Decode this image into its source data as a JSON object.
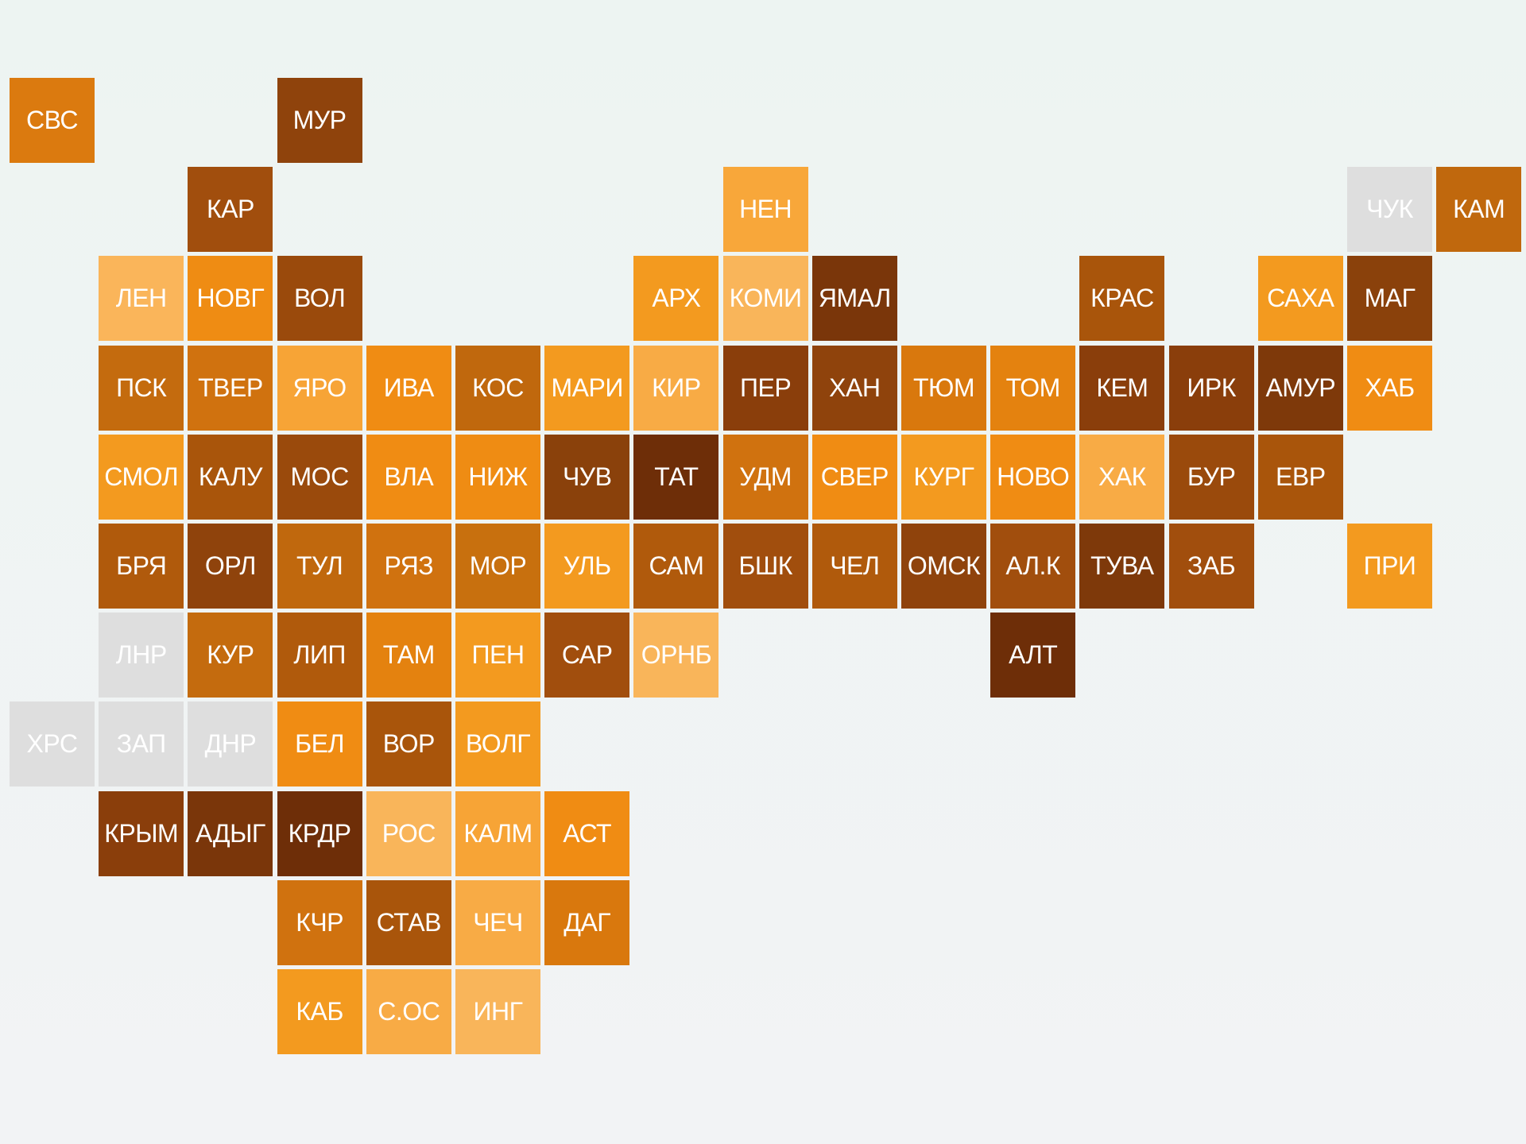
{
  "map": {
    "rows": [
      [
        {
          "label": "СВС",
          "color": "#db7a0f"
        },
        null,
        null,
        {
          "label": "МУР",
          "color": "#8f430c"
        }
      ],
      [
        null,
        null,
        {
          "label": "КАР",
          "color": "#a14e0d"
        },
        null,
        null,
        null,
        null,
        null,
        {
          "label": "НЕН",
          "color": "#f8a73a"
        },
        null,
        null,
        null,
        null,
        null,
        null,
        {
          "label": "ЧУК",
          "color": "#dedede"
        },
        {
          "label": "КАМ",
          "color": "#c0680d"
        }
      ],
      [
        null,
        {
          "label": "ЛЕН",
          "color": "#fab55a"
        },
        {
          "label": "НОВГ",
          "color": "#ef8c13"
        },
        {
          "label": "ВОЛ",
          "color": "#9a4a0c"
        },
        null,
        null,
        null,
        {
          "label": "АРХ",
          "color": "#f39a1f"
        },
        {
          "label": "КОМИ",
          "color": "#f9b55a"
        },
        {
          "label": "ЯМАЛ",
          "color": "#7a360a"
        },
        null,
        null,
        {
          "label": "КРАС",
          "color": "#a9550b"
        },
        null,
        {
          "label": "САХА",
          "color": "#f39a1f"
        },
        {
          "label": "МАГ",
          "color": "#8a410b"
        }
      ],
      [
        null,
        {
          "label": "ПСК",
          "color": "#c46b0e"
        },
        {
          "label": "ТВЕР",
          "color": "#d0720f"
        },
        {
          "label": "ЯРО",
          "color": "#f7a436"
        },
        {
          "label": "ИВА",
          "color": "#f08c13"
        },
        {
          "label": "КОС",
          "color": "#c0680d"
        },
        {
          "label": "МАРИ",
          "color": "#f39a1f"
        },
        {
          "label": "КИР",
          "color": "#f8ab45"
        },
        {
          "label": "ПЕР",
          "color": "#8a3e0b"
        },
        {
          "label": "ХАН",
          "color": "#8f430c"
        },
        {
          "label": "ТЮМ",
          "color": "#d9780d"
        },
        {
          "label": "ТОМ",
          "color": "#e4820f"
        },
        {
          "label": "КЕМ",
          "color": "#8a3e0b"
        },
        {
          "label": "ИРК",
          "color": "#8a3e0b"
        },
        {
          "label": "АМУР",
          "color": "#7e390a"
        },
        {
          "label": "ХАБ",
          "color": "#f08c13"
        }
      ],
      [
        null,
        {
          "label": "СМОЛ",
          "color": "#f39a1f"
        },
        {
          "label": "КАЛУ",
          "color": "#a9550b"
        },
        {
          "label": "МОС",
          "color": "#9a4a0c"
        },
        {
          "label": "ВЛА",
          "color": "#f08c13"
        },
        {
          "label": "НИЖ",
          "color": "#ef8c13"
        },
        {
          "label": "ЧУВ",
          "color": "#8a410b"
        },
        {
          "label": "ТАТ",
          "color": "#6e2e08"
        },
        {
          "label": "УДМ",
          "color": "#d0720f"
        },
        {
          "label": "СВЕР",
          "color": "#f08c13"
        },
        {
          "label": "КУРГ",
          "color": "#f39a1f"
        },
        {
          "label": "НОВО",
          "color": "#f08c13"
        },
        {
          "label": "ХАК",
          "color": "#f8ab45"
        },
        {
          "label": "БУР",
          "color": "#9a4a0c"
        },
        {
          "label": "ЕВР",
          "color": "#a9550b"
        }
      ],
      [
        null,
        {
          "label": "БРЯ",
          "color": "#b05a0c"
        },
        {
          "label": "ОРЛ",
          "color": "#8f430c"
        },
        {
          "label": "ТУЛ",
          "color": "#c0680d"
        },
        {
          "label": "РЯЗ",
          "color": "#d0720f"
        },
        {
          "label": "МОР",
          "color": "#c8700e"
        },
        {
          "label": "УЛЬ",
          "color": "#f39a1f"
        },
        {
          "label": "САМ",
          "color": "#b05a0c"
        },
        {
          "label": "БШК",
          "color": "#a14e0d"
        },
        {
          "label": "ЧЕЛ",
          "color": "#b05a0c"
        },
        {
          "label": "ОМСК",
          "color": "#8f430c"
        },
        {
          "label": "АЛ.К",
          "color": "#a14e0d"
        },
        {
          "label": "ТУВА",
          "color": "#7e390a"
        },
        {
          "label": "ЗАБ",
          "color": "#a14e0d"
        },
        null,
        {
          "label": "ПРИ",
          "color": "#f39a1f"
        }
      ],
      [
        null,
        {
          "label": "ЛНР",
          "color": "#dedede"
        },
        {
          "label": "КУР",
          "color": "#c46b0e"
        },
        {
          "label": "ЛИП",
          "color": "#b05a0c"
        },
        {
          "label": "ТАМ",
          "color": "#e4820f"
        },
        {
          "label": "ПЕН",
          "color": "#f39a1f"
        },
        {
          "label": "САР",
          "color": "#a14e0d"
        },
        {
          "label": "ОРНБ",
          "color": "#f9b55a"
        },
        null,
        null,
        null,
        {
          "label": "АЛТ",
          "color": "#6e2e08"
        }
      ],
      [
        {
          "label": "ХРС",
          "color": "#dedede"
        },
        {
          "label": "ЗАП",
          "color": "#dedede"
        },
        {
          "label": "ДНР",
          "color": "#dedede"
        },
        {
          "label": "БЕЛ",
          "color": "#f08c13"
        },
        {
          "label": "ВОР",
          "color": "#a9550b"
        },
        {
          "label": "ВОЛГ",
          "color": "#f39a1f"
        }
      ],
      [
        null,
        {
          "label": "КРЫМ",
          "color": "#8a3e0b"
        },
        {
          "label": "АДЫГ",
          "color": "#7a360a"
        },
        {
          "label": "КРДР",
          "color": "#6e2e08"
        },
        {
          "label": "РОС",
          "color": "#f9b55a"
        },
        {
          "label": "КАЛМ",
          "color": "#f7a436"
        },
        {
          "label": "АСТ",
          "color": "#f08c13"
        }
      ],
      [
        null,
        null,
        null,
        {
          "label": "КЧР",
          "color": "#d0720f"
        },
        {
          "label": "СТАВ",
          "color": "#a9550b"
        },
        {
          "label": "ЧЕЧ",
          "color": "#f8ab45"
        },
        {
          "label": "ДАГ",
          "color": "#d9780d"
        }
      ],
      [
        null,
        null,
        null,
        {
          "label": "КАБ",
          "color": "#f39a1f"
        },
        {
          "label": "С.ОС",
          "color": "#f8ab45"
        },
        {
          "label": "ИНГ",
          "color": "#f9b55a"
        }
      ]
    ]
  }
}
